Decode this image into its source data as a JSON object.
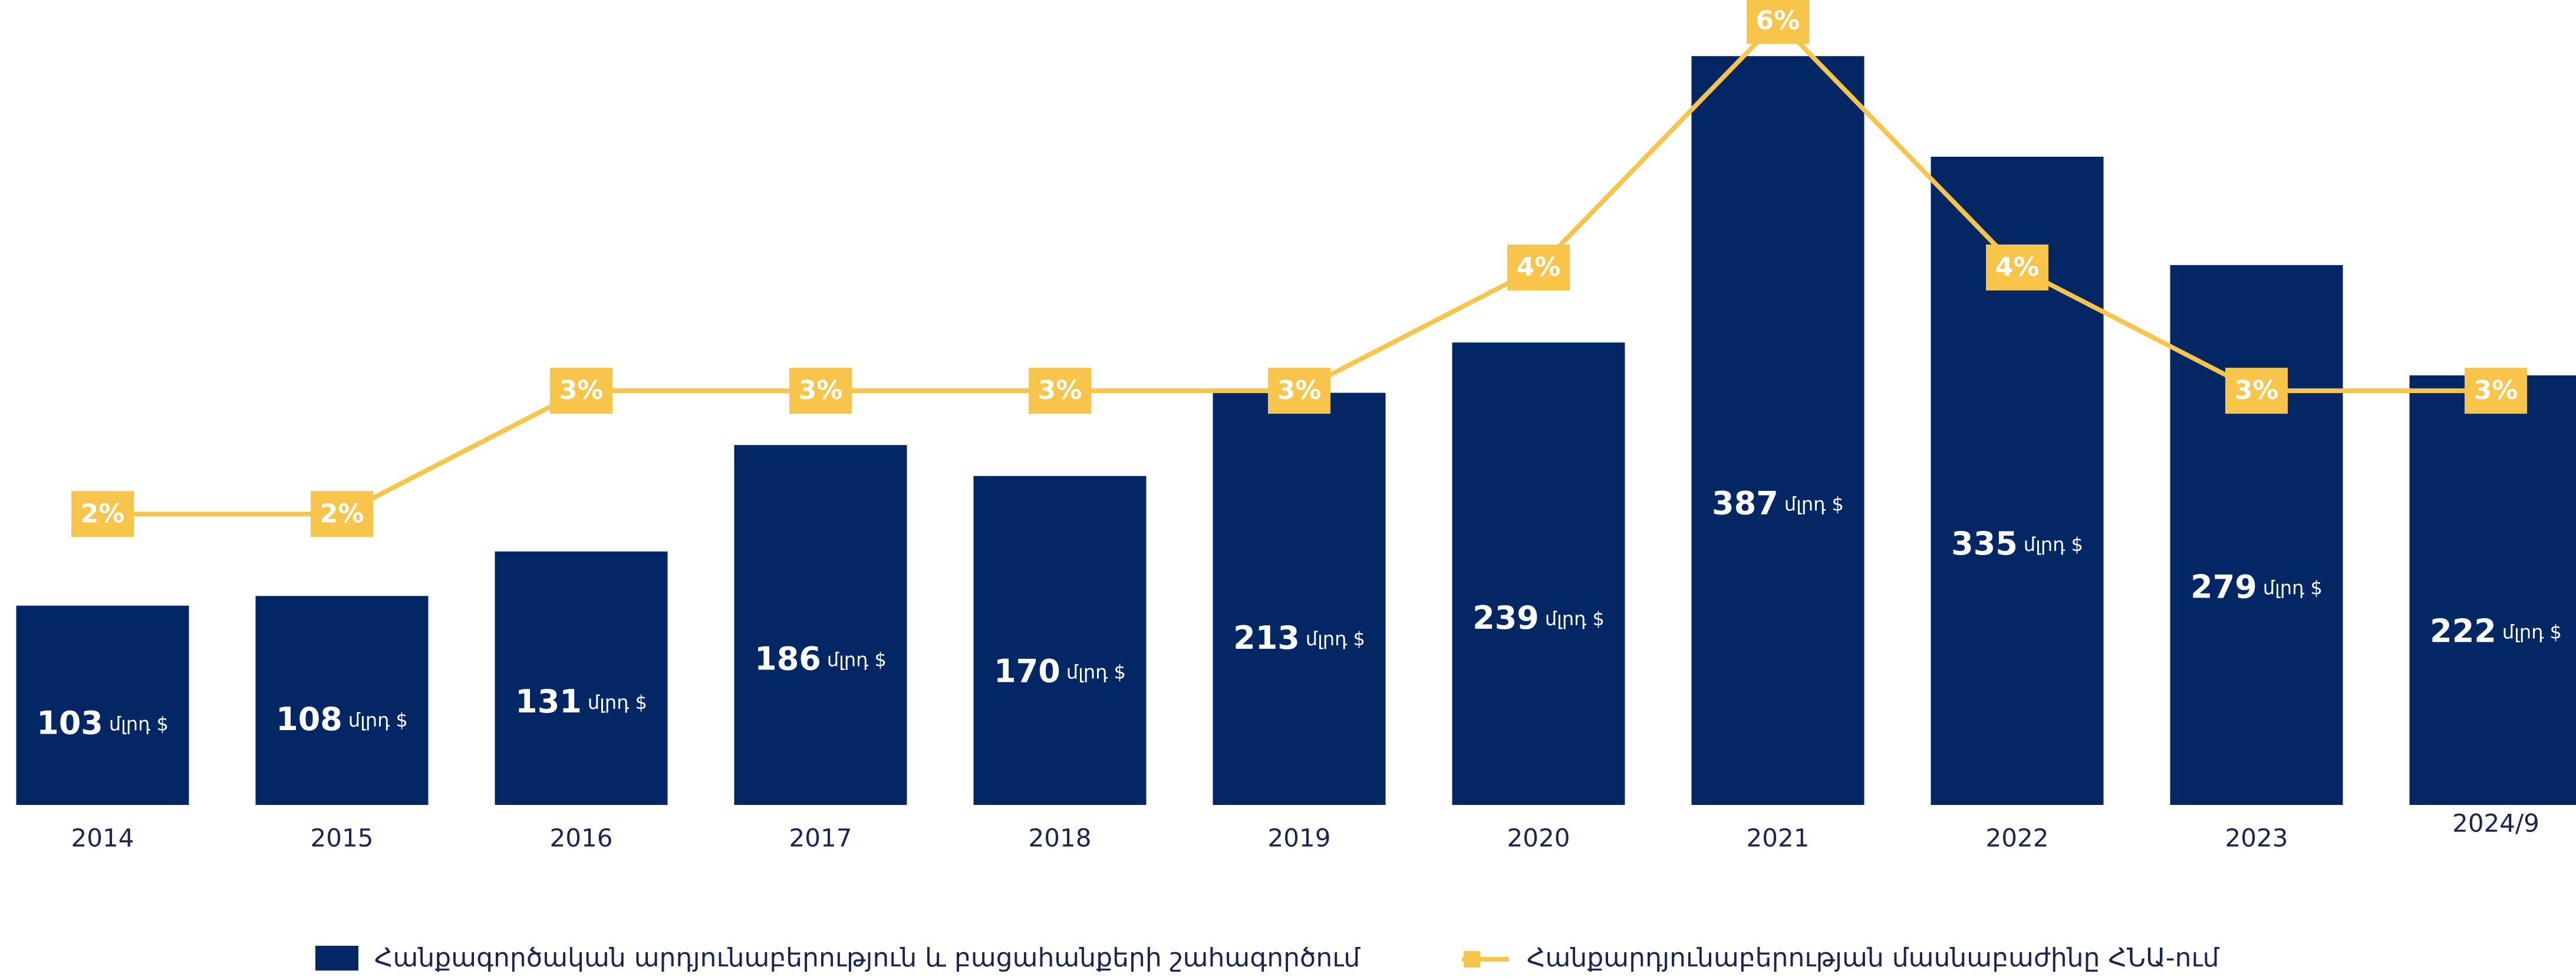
{
  "chart_data": {
    "type": "bar_line",
    "categories": [
      "2014",
      "2015",
      "2016",
      "2017",
      "2018",
      "2019",
      "2020",
      "2021",
      "2022",
      "2023",
      "2024/9"
    ],
    "unit": "մլրդ $",
    "series": [
      {
        "name": "Հանքագործական արդյունաբերություն և բացահանքերի շահագործում",
        "color": "#032765",
        "values": [
          103,
          108,
          131,
          186,
          170,
          213,
          239,
          387,
          335,
          279,
          222
        ]
      },
      {
        "name": "Հանքարդյունաբերության մասնաբաժինը ՀՆԱ-ում",
        "color": "#f8c44a",
        "axis": "y2",
        "values": [
          2,
          2,
          3,
          3,
          3,
          3,
          4,
          6,
          4,
          3,
          3
        ],
        "value_labels": [
          "2%",
          "2%",
          "3%",
          "3%",
          "3%",
          "3%",
          "4%",
          "6%",
          "4%",
          "3%",
          "3%"
        ]
      }
    ],
    "ylim": [
      0,
      416
    ],
    "y2lim": [
      -0.36,
      6.17
    ]
  }
}
